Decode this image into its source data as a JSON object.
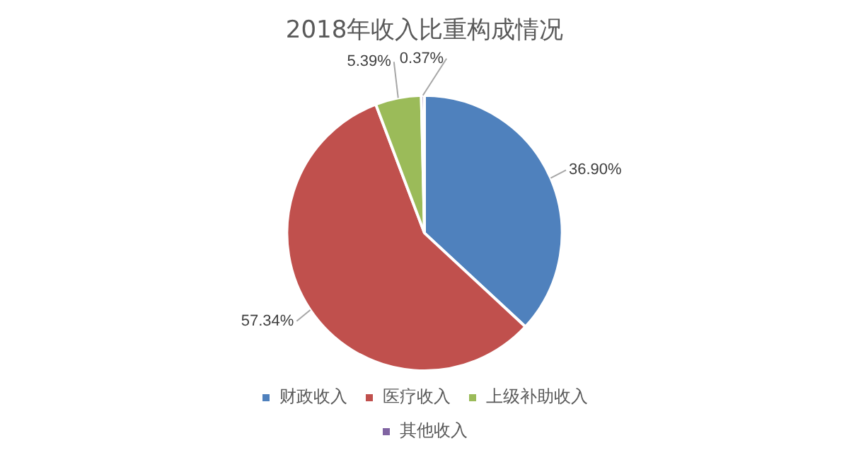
{
  "chart_data": {
    "type": "pie",
    "title": "2018年收入比重构成情况",
    "categories": [
      "财政收入",
      "医疗收入",
      "上级补助收入",
      "其他收入"
    ],
    "values": [
      36.9,
      57.34,
      5.39,
      0.37
    ],
    "value_labels": [
      "36.90%",
      "57.34%",
      "5.39%",
      "0.37%"
    ],
    "colors": [
      "#4f81bd",
      "#c0504d",
      "#9bbb59",
      "#8064a2"
    ],
    "legend": "bottom"
  }
}
